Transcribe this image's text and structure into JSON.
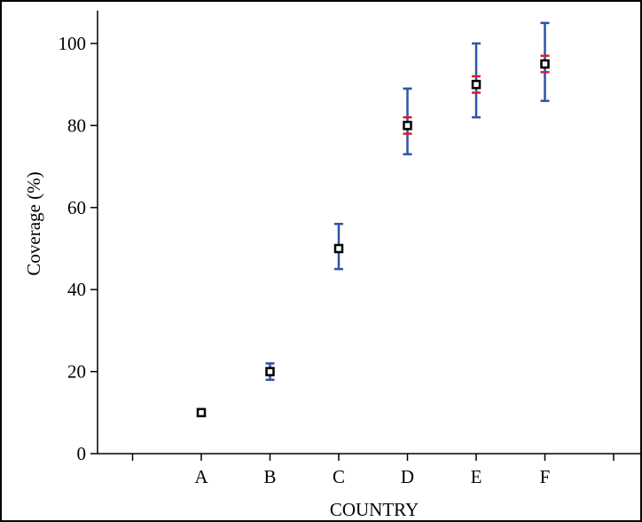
{
  "chart_data": {
    "type": "scatter",
    "title": "",
    "xlabel": "COUNTRY",
    "ylabel": "Coverage (%)",
    "categories": [
      "A",
      "B",
      "C",
      "D",
      "E",
      "F"
    ],
    "ylim": [
      0,
      108
    ],
    "yticks": [
      0,
      20,
      40,
      60,
      80,
      100
    ],
    "grid": false,
    "legend": "none",
    "series": [
      {
        "values": [
          10,
          20,
          50,
          80,
          90,
          95
        ],
        "whisker_outer": [
          [
            10,
            10
          ],
          [
            18,
            22
          ],
          [
            45,
            56
          ],
          [
            73,
            89
          ],
          [
            82,
            100
          ],
          [
            86,
            105
          ]
        ],
        "whisker_inner": [
          [
            10,
            10
          ],
          [
            20,
            20
          ],
          [
            50,
            50
          ],
          [
            78,
            82
          ],
          [
            88,
            92
          ],
          [
            93,
            97
          ]
        ]
      }
    ],
    "colors": {
      "outer_whisker": "#2e55a5",
      "inner_whisker": "#e01b24",
      "marker_edge": "#000000",
      "marker_fill": "#ffffff"
    }
  }
}
